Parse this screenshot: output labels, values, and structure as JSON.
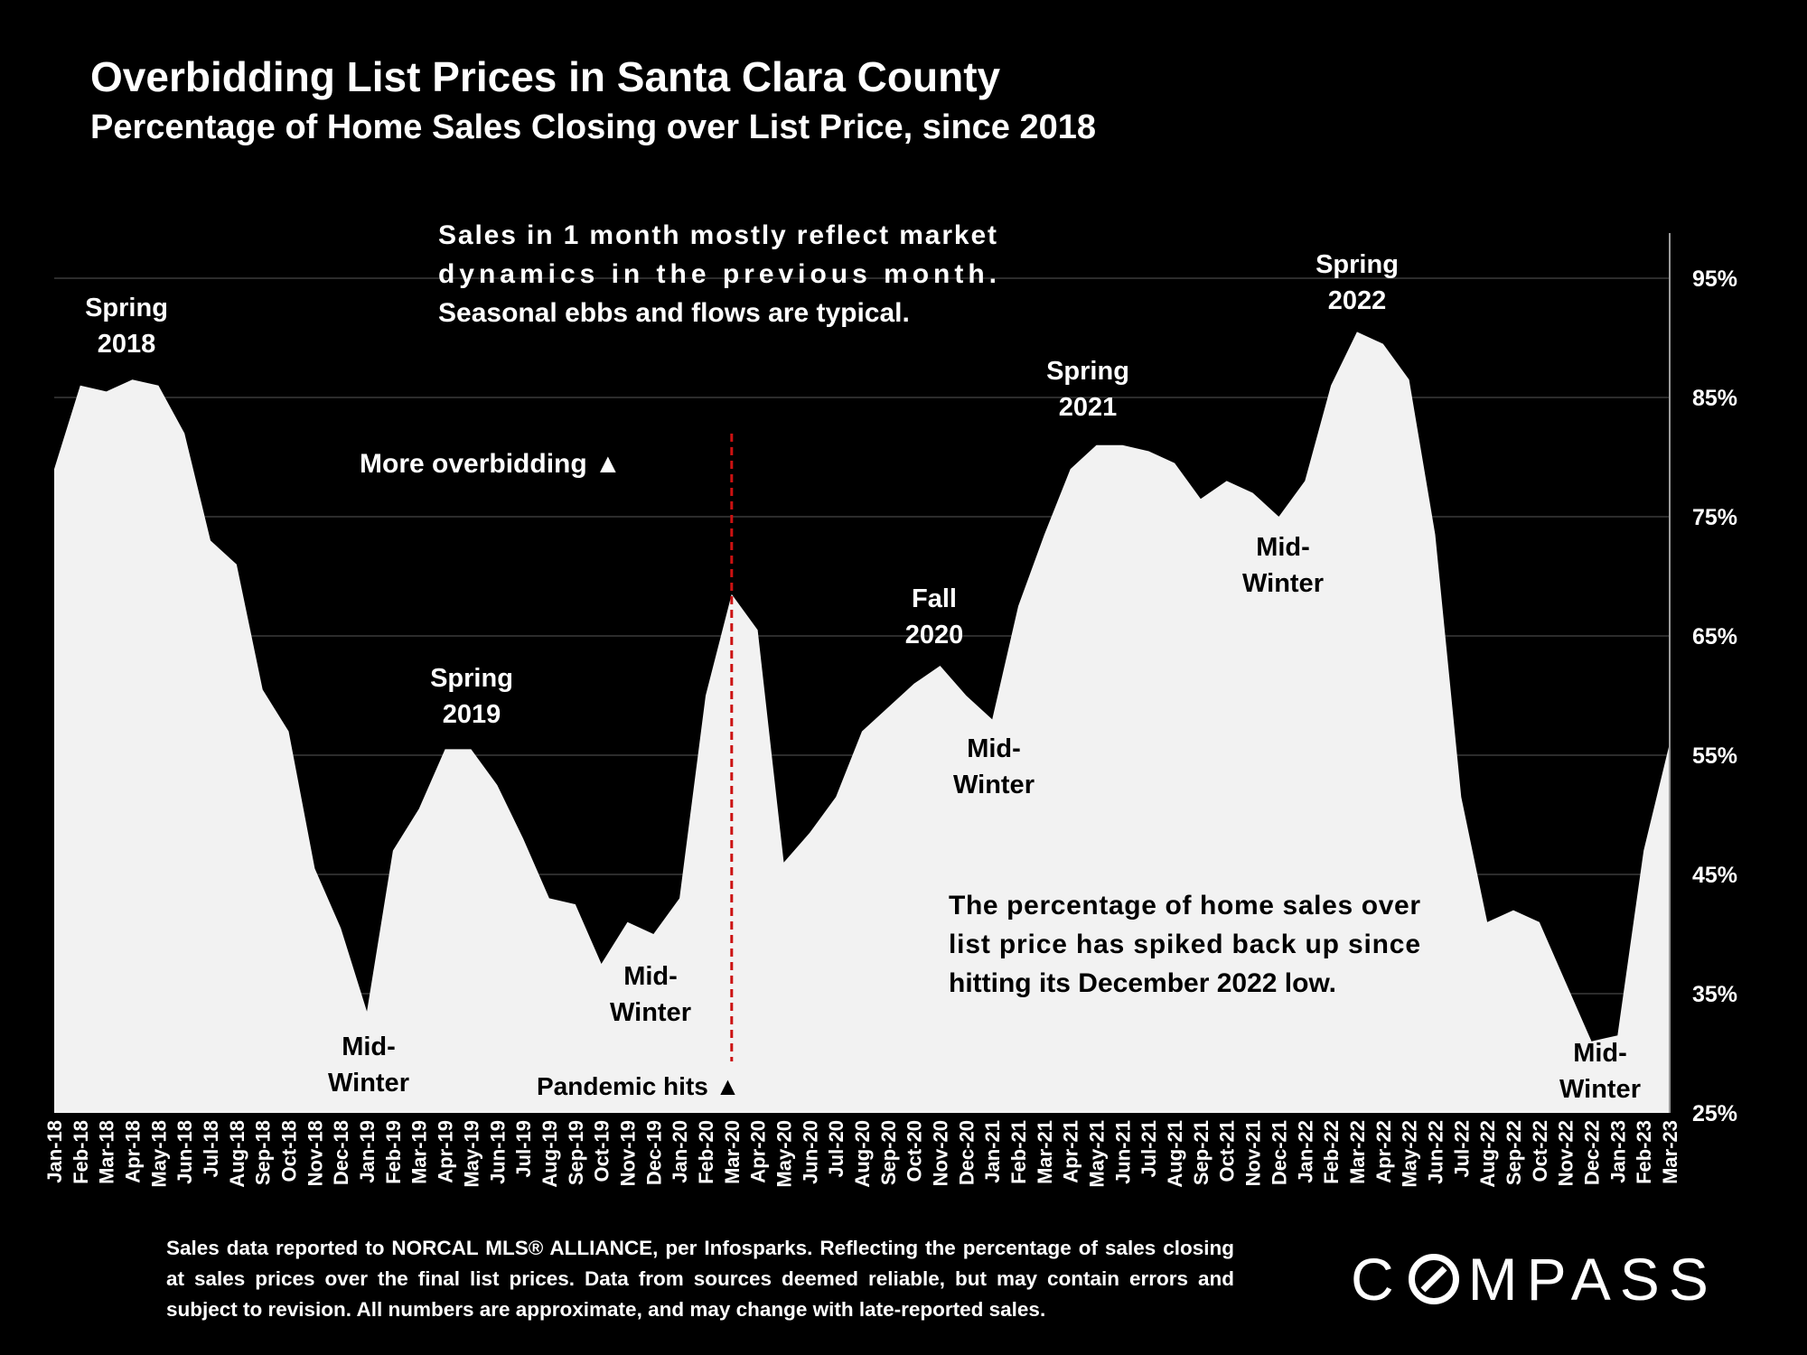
{
  "header": {
    "title": "Overbidding List Prices in Santa Clara County",
    "subtitle": "Percentage of Home Sales Closing over List Price, since 2018"
  },
  "footnote": "Sales data reported to NORCAL MLS® ALLIANCE, per Infosparks. Reflecting the percentage of sales closing at sales prices over the final list prices. Data from sources deemed reliable, but may contain errors and subject to revision. All numbers are approximate, and may change with late-reported sales.",
  "logo": {
    "text_before": "C",
    "text_after": "MPASS"
  },
  "colors": {
    "background": "#000000",
    "area": "#f2f2f2",
    "gridline": "#3a3a3a",
    "pandemic_line": "#cc1111",
    "text": "#ffffff",
    "inside_text": "#000000"
  },
  "chart_data": {
    "type": "area",
    "title": "Overbidding List Prices in Santa Clara County",
    "subtitle": "Percentage of Home Sales Closing over List Price, since 2018",
    "xlabel": "",
    "ylabel": "",
    "y_axis_position": "right",
    "ylim": [
      25,
      99
    ],
    "y_ticks": [
      25,
      35,
      45,
      55,
      65,
      75,
      85,
      95
    ],
    "y_tick_labels": [
      "25%",
      "35%",
      "45%",
      "55%",
      "65%",
      "75%",
      "85%",
      "95%"
    ],
    "grid": true,
    "categories": [
      "Jan-18",
      "Feb-18",
      "Mar-18",
      "Apr-18",
      "May-18",
      "Jun-18",
      "Jul-18",
      "Aug-18",
      "Sep-18",
      "Oct-18",
      "Nov-18",
      "Dec-18",
      "Jan-19",
      "Feb-19",
      "Mar-19",
      "Apr-19",
      "May-19",
      "Jun-19",
      "Jul-19",
      "Aug-19",
      "Sep-19",
      "Oct-19",
      "Nov-19",
      "Dec-19",
      "Jan-20",
      "Feb-20",
      "Mar-20",
      "Apr-20",
      "May-20",
      "Jun-20",
      "Jul-20",
      "Aug-20",
      "Sep-20",
      "Oct-20",
      "Nov-20",
      "Dec-20",
      "Jan-21",
      "Feb-21",
      "Mar-21",
      "Apr-21",
      "May-21",
      "Jun-21",
      "Jul-21",
      "Aug-21",
      "Sep-21",
      "Oct-21",
      "Nov-21",
      "Dec-21",
      "Jan-22",
      "Feb-22",
      "Mar-22",
      "Apr-22",
      "May-22",
      "Jun-22",
      "Jul-22",
      "Aug-22",
      "Sep-22",
      "Oct-22",
      "Nov-22",
      "Dec-22",
      "Jan-23",
      "Feb-23",
      "Mar-23"
    ],
    "values": [
      79,
      86,
      85.5,
      86.5,
      86,
      82,
      73,
      71,
      60.5,
      57,
      45.5,
      40.5,
      33.5,
      47,
      50.5,
      55.5,
      55.5,
      52.5,
      48,
      43,
      42.5,
      37.5,
      41,
      40,
      43,
      60,
      68.5,
      65.5,
      46,
      48.5,
      51.5,
      57,
      59,
      61,
      62.5,
      60,
      58,
      67.5,
      73.5,
      79,
      81,
      81,
      80.5,
      79.5,
      76.5,
      78,
      77,
      75,
      78,
      86,
      90.5,
      89.5,
      86.5,
      73.5,
      51.5,
      41,
      42,
      41,
      36,
      31,
      31.5,
      47,
      56
    ],
    "annotations": [
      {
        "id": "spring2018",
        "lines": [
          "Spring",
          "2018"
        ],
        "at": "Apr-18"
      },
      {
        "id": "midwinter2019",
        "lines": [
          "Mid-",
          "Winter"
        ],
        "at": "Jan-19"
      },
      {
        "id": "spring2019",
        "lines": [
          "Spring",
          "2019"
        ],
        "at": "Apr-19"
      },
      {
        "id": "midwinter2020",
        "lines": [
          "Mid-",
          "Winter"
        ],
        "at": "Nov-19"
      },
      {
        "id": "fall2020",
        "lines": [
          "Fall",
          "2020"
        ],
        "at": "Nov-20"
      },
      {
        "id": "midwinter2021",
        "lines": [
          "Mid-",
          "Winter"
        ],
        "at": "Jan-21"
      },
      {
        "id": "spring2021",
        "lines": [
          "Spring",
          "2021"
        ],
        "at": "May-21"
      },
      {
        "id": "midwinter2022",
        "lines": [
          "Mid-",
          "Winter"
        ],
        "at": "Dec-21"
      },
      {
        "id": "spring2022",
        "lines": [
          "Spring",
          "2022"
        ],
        "at": "Mar-22"
      },
      {
        "id": "midwinter2023",
        "lines": [
          "Mid-",
          "Winter"
        ],
        "at": "Jan-23"
      }
    ],
    "note_top": [
      "Sales in 1 month mostly reflect market",
      "dynamics in the previous month.",
      "Seasonal ebbs and flows are typical."
    ],
    "more_overbidding": "More overbidding ▲",
    "pandemic": {
      "label": "Pandemic hits ▲",
      "at": "Mar-20"
    },
    "note_bottom": [
      "The percentage of home sales over",
      "list price has spiked back up since",
      "hitting its December 2022 low."
    ]
  }
}
